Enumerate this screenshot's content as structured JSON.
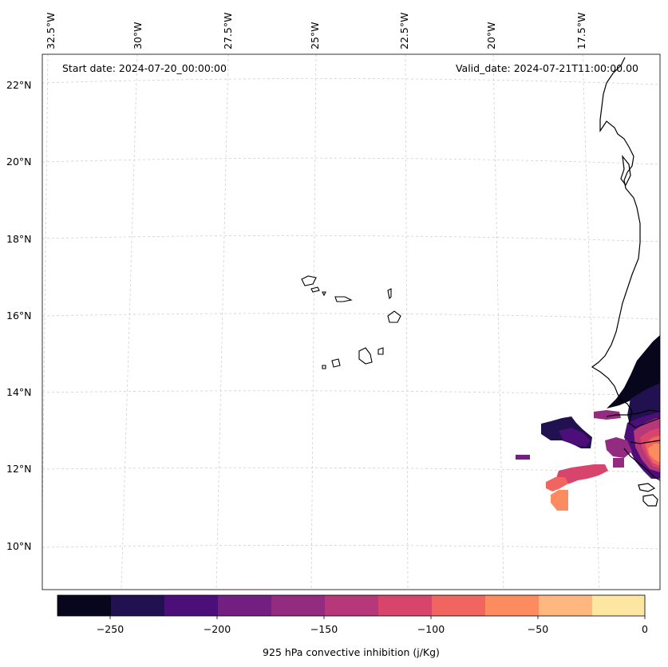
{
  "map": {
    "start_date": "Start date: 2024-07-20_00:00:00",
    "valid_date": "Valid_date: 2024-07-21T11:00:00.00",
    "lon_ticks": [
      "32.5°W",
      "30°W",
      "27.5°W",
      "25°W",
      "22.5°W",
      "20°W",
      "17.5°W"
    ],
    "lat_ticks": [
      "22°N",
      "20°N",
      "18°N",
      "16°N",
      "14°N",
      "12°N",
      "10°N"
    ]
  },
  "colorbar": {
    "label": "925 hPa convective inhibition (j/Kg)",
    "tick_labels": [
      "−250",
      "−200",
      "−150",
      "−100",
      "−50",
      "0"
    ],
    "colors": [
      "#07061c",
      "#221150",
      "#4c0f7a",
      "#721f81",
      "#932b80",
      "#b6377a",
      "#d8456c",
      "#f06560",
      "#fc8b60",
      "#feb77e",
      "#fde5a2"
    ]
  }
}
